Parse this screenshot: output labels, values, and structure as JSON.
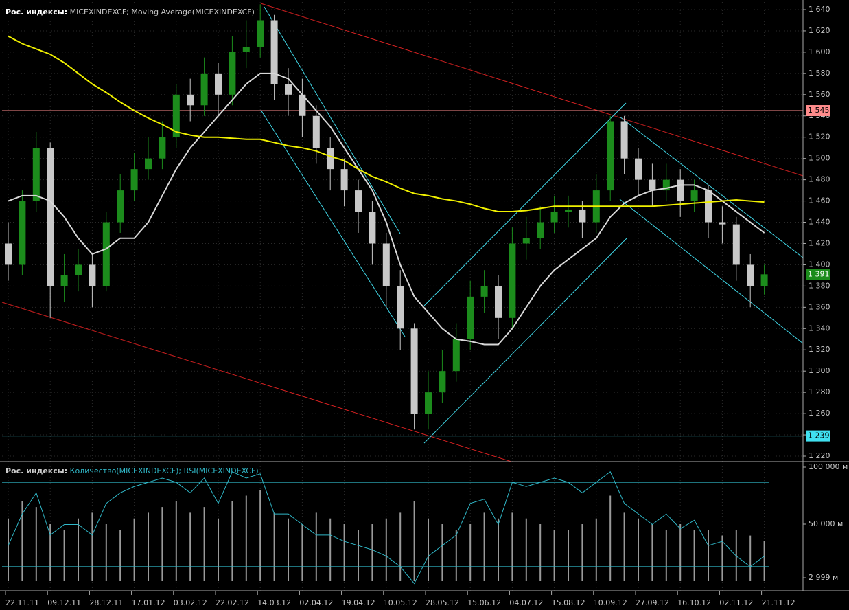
{
  "chart_data": [
    {
      "type": "candlestick",
      "title": "Рос. индексы:",
      "subtitle": "MICEXINDEXCF; Moving Average(MICEXINDEXCF)",
      "categories": [
        "22.11.11",
        null,
        null,
        "09.12.11",
        null,
        null,
        "28.12.11",
        null,
        null,
        "17.01.12",
        null,
        null,
        "03.02.12",
        null,
        null,
        "22.02.12",
        null,
        null,
        "14.03.12",
        null,
        null,
        "02.04.12",
        null,
        null,
        "19.04.12",
        null,
        null,
        "10.05.12",
        null,
        null,
        "28.05.12",
        null,
        null,
        "15.06.12",
        null,
        null,
        "04.07.12",
        null,
        null,
        "15.08.12",
        null,
        null,
        "10.09.12",
        null,
        null,
        "27.09.12",
        null,
        null,
        "16.10.12",
        null,
        null,
        "02.11.12",
        null,
        null,
        "21.11.12"
      ],
      "open": [
        1420,
        1400,
        1460,
        1510,
        1380,
        1390,
        1400,
        1380,
        1440,
        1470,
        1490,
        1500,
        1520,
        1560,
        1550,
        1580,
        1560,
        1600,
        1605,
        1630,
        1570,
        1560,
        1540,
        1510,
        1490,
        1470,
        1450,
        1420,
        1380,
        1340,
        1260,
        1280,
        1300,
        1330,
        1370,
        1380,
        1350,
        1420,
        1425,
        1440,
        1450,
        1452,
        1440,
        1470,
        1535,
        1500,
        1480,
        1470,
        1480,
        1460,
        1470,
        1440,
        1438,
        1400,
        1380
      ],
      "high": [
        1440,
        1470,
        1525,
        1515,
        1410,
        1415,
        1410,
        1450,
        1485,
        1505,
        1520,
        1535,
        1570,
        1575,
        1595,
        1590,
        1615,
        1630,
        1645,
        1635,
        1585,
        1575,
        1550,
        1520,
        1500,
        1480,
        1460,
        1430,
        1395,
        1345,
        1300,
        1320,
        1345,
        1385,
        1395,
        1390,
        1435,
        1445,
        1455,
        1465,
        1465,
        1460,
        1485,
        1540,
        1540,
        1510,
        1495,
        1495,
        1490,
        1480,
        1475,
        1455,
        1445,
        1410,
        1400
      ],
      "low": [
        1385,
        1390,
        1450,
        1350,
        1365,
        1375,
        1360,
        1375,
        1430,
        1460,
        1480,
        1490,
        1510,
        1535,
        1540,
        1540,
        1550,
        1585,
        1595,
        1555,
        1540,
        1520,
        1495,
        1470,
        1455,
        1430,
        1400,
        1360,
        1320,
        1245,
        1245,
        1270,
        1290,
        1320,
        1355,
        1330,
        1340,
        1405,
        1415,
        1430,
        1435,
        1425,
        1430,
        1460,
        1485,
        1465,
        1455,
        1460,
        1445,
        1450,
        1425,
        1420,
        1385,
        1360,
        1372
      ],
      "close": [
        1400,
        1460,
        1510,
        1380,
        1390,
        1400,
        1380,
        1440,
        1470,
        1490,
        1500,
        1520,
        1560,
        1550,
        1580,
        1560,
        1600,
        1605,
        1630,
        1570,
        1560,
        1540,
        1510,
        1490,
        1470,
        1450,
        1420,
        1380,
        1340,
        1260,
        1280,
        1300,
        1330,
        1370,
        1380,
        1350,
        1420,
        1425,
        1440,
        1450,
        1452,
        1440,
        1470,
        1535,
        1500,
        1480,
        1470,
        1480,
        1460,
        1470,
        1440,
        1438,
        1400,
        1380,
        1391
      ],
      "up_color": "#1c8c1c",
      "down_color": "#c8c8c8",
      "series": [
        {
          "color": "#d8d8d8",
          "values": [
            1460,
            1465,
            1465,
            1460,
            1445,
            1425,
            1410,
            1415,
            1425,
            1425,
            1440,
            1465,
            1490,
            1510,
            1525,
            1540,
            1555,
            1570,
            1580,
            1580,
            1575,
            1560,
            1545,
            1530,
            1510,
            1490,
            1470,
            1440,
            1400,
            1370,
            1355,
            1340,
            1330,
            1328,
            1325,
            1325,
            1340,
            1360,
            1380,
            1395,
            1405,
            1415,
            1425,
            1445,
            1458,
            1465,
            1470,
            1472,
            1475,
            1475,
            1470,
            1460,
            1450,
            1440,
            1430
          ]
        },
        {
          "color": "#f0f000",
          "values": [
            1615,
            1608,
            1603,
            1598,
            1590,
            1580,
            1570,
            1562,
            1553,
            1545,
            1538,
            1532,
            1525,
            1522,
            1520,
            1520,
            1519,
            1518,
            1518,
            1515,
            1512,
            1510,
            1507,
            1502,
            1498,
            1490,
            1483,
            1478,
            1472,
            1467,
            1465,
            1462,
            1460,
            1457,
            1453,
            1450,
            1450,
            1451,
            1453,
            1455,
            1455,
            1455,
            1455,
            1455,
            1455,
            1455,
            1455,
            1456,
            1457,
            1458,
            1459,
            1460,
            1461,
            1460,
            1459
          ]
        }
      ],
      "levels": [
        {
          "value": 1545,
          "label": "1 545",
          "color": "#ff8c8c"
        },
        {
          "value": 1239,
          "label": "1 239",
          "color": "#40e0f0"
        }
      ],
      "last_price": {
        "value": 1391,
        "label": "1 391",
        "color": "#1c8c1c"
      },
      "ylim": [
        1220,
        1640
      ],
      "yticks": [
        {
          "value": 1220,
          "label": "1 220"
        },
        {
          "value": 1240,
          "label": "1 240"
        },
        {
          "value": 1260,
          "label": "1 260"
        },
        {
          "value": 1280,
          "label": "1 280"
        },
        {
          "value": 1300,
          "label": "1 300"
        },
        {
          "value": 1320,
          "label": "1 320"
        },
        {
          "value": 1340,
          "label": "1 340"
        },
        {
          "value": 1360,
          "label": "1 360"
        },
        {
          "value": 1380,
          "label": "1 380"
        },
        {
          "value": 1400,
          "label": "1 400"
        },
        {
          "value": 1420,
          "label": "1 420"
        },
        {
          "value": 1440,
          "label": "1 440"
        },
        {
          "value": 1460,
          "label": "1 460"
        },
        {
          "value": 1480,
          "label": "1 480"
        },
        {
          "value": 1500,
          "label": "1 500"
        },
        {
          "value": 1520,
          "label": "1 520"
        },
        {
          "value": 1540,
          "label": "1 540"
        },
        {
          "value": 1560,
          "label": "1 560"
        },
        {
          "value": 1580,
          "label": "1 580"
        },
        {
          "value": 1600,
          "label": "1 600"
        },
        {
          "value": 1620,
          "label": "1 620"
        },
        {
          "value": 1640,
          "label": "1 640"
        }
      ],
      "grid": true
    },
    {
      "type": "volume_rsi",
      "title": "Рос. индексы:",
      "subtitle": "Количество(MICEXINDEXCF); RSI(MICEXINDEXCF)",
      "volume": {
        "color": "#9a9a9a",
        "values": [
          55000,
          70000,
          65000,
          50000,
          45000,
          55000,
          60000,
          50000,
          45000,
          55000,
          60000,
          65000,
          70000,
          60000,
          65000,
          55000,
          70000,
          75000,
          80000,
          60000,
          55000,
          50000,
          60000,
          55000,
          50000,
          45000,
          50000,
          55000,
          60000,
          70000,
          55000,
          50000,
          45000,
          50000,
          60000,
          55000,
          60000,
          55000,
          50000,
          45000,
          45000,
          50000,
          55000,
          75000,
          60000,
          55000,
          50000,
          45000,
          50000,
          45000,
          45000,
          40000,
          45000,
          40000,
          35000
        ]
      },
      "rsi": {
        "color": "#30b8c8",
        "values": [
          40,
          55,
          65,
          45,
          50,
          50,
          45,
          60,
          65,
          68,
          70,
          72,
          70,
          65,
          72,
          60,
          75,
          72,
          74,
          55,
          55,
          50,
          45,
          45,
          42,
          40,
          38,
          35,
          30,
          22,
          35,
          40,
          45,
          60,
          62,
          50,
          70,
          68,
          70,
          72,
          70,
          65,
          70,
          75,
          60,
          55,
          50,
          55,
          48,
          52,
          40,
          42,
          35,
          30,
          35
        ],
        "ylim": [
          0,
          100
        ],
        "levels": [
          70,
          30
        ]
      },
      "ylim": [
        0,
        100000
      ],
      "yticks": [
        {
          "value": 100000,
          "label": "100 000 м"
        },
        {
          "value": 50000,
          "label": "50 000 м"
        },
        {
          "value": 2999,
          "label": "2 999 м"
        }
      ]
    }
  ]
}
